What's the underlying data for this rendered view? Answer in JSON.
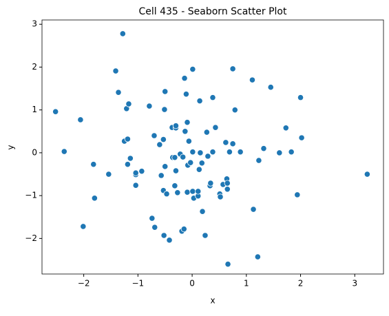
{
  "chart_data": {
    "type": "scatter",
    "title": "Cell 435 - Seaborn Scatter Plot",
    "x_label": "x",
    "y_label": "y",
    "color": "#1f77b4",
    "xlim": [
      -2.77,
      3.53
    ],
    "ylim": [
      -2.83,
      3.1
    ],
    "xticks": [
      {
        "value": -2,
        "label": "−2"
      },
      {
        "value": -1,
        "label": "−1"
      },
      0,
      1,
      2,
      3
    ],
    "yticks": [
      {
        "value": -2,
        "label": "−2"
      },
      {
        "value": -1,
        "label": "−1"
      },
      0,
      1,
      2,
      3
    ],
    "grid": false,
    "x": [
      -2.52,
      -2.36,
      -2.06,
      -2.01,
      -1.82,
      -1.8,
      -1.54,
      -1.41,
      -1.36,
      -1.28,
      -1.25,
      -1.19,
      -1.21,
      -1.17,
      -1.19,
      -1.14,
      -1.04,
      -1.04,
      -1.04,
      -0.93,
      -0.79,
      -0.74,
      -0.7,
      -0.69,
      -0.6,
      -0.57,
      -0.53,
      -0.53,
      -0.52,
      -0.51,
      -0.5,
      -0.5,
      -0.47,
      -0.42,
      -0.37,
      -0.36,
      -0.32,
      -0.3,
      -0.3,
      -0.32,
      -0.3,
      -0.27,
      -0.22,
      -0.19,
      -0.17,
      -0.15,
      -0.14,
      -0.13,
      -0.11,
      -0.09,
      -0.09,
      -0.08,
      -0.06,
      -0.03,
      0.01,
      0.01,
      0.01,
      0.03,
      0.11,
      0.11,
      0.13,
      0.14,
      0.15,
      0.18,
      0.19,
      0.24,
      0.27,
      0.29,
      0.33,
      0.34,
      0.38,
      0.38,
      0.43,
      0.51,
      0.52,
      0.57,
      0.62,
      0.64,
      0.65,
      0.65,
      0.66,
      0.69,
      0.75,
      0.75,
      0.79,
      0.89,
      1.11,
      1.13,
      1.21,
      1.23,
      1.32,
      1.45,
      1.61,
      1.73,
      1.83,
      1.94,
      2.0,
      2.02,
      3.23
    ],
    "values": [
      0.96,
      0.03,
      0.77,
      -1.72,
      -0.27,
      -1.06,
      -0.5,
      1.91,
      1.41,
      2.78,
      0.27,
      0.32,
      1.03,
      1.14,
      -0.27,
      -0.13,
      -0.51,
      -0.76,
      -0.47,
      -0.43,
      1.09,
      -1.53,
      0.4,
      -1.74,
      0.19,
      -0.53,
      0.31,
      -0.88,
      -1.93,
      1.01,
      1.43,
      -0.32,
      -0.96,
      -2.04,
      0.59,
      -0.11,
      -0.11,
      0.58,
      0.63,
      -0.77,
      -0.42,
      -0.93,
      -0.03,
      -1.83,
      -0.1,
      -1.78,
      1.74,
      0.5,
      1.37,
      0.71,
      -0.92,
      -0.29,
      0.27,
      -0.23,
      1.95,
      0.02,
      -0.9,
      -1.06,
      -1.01,
      -0.9,
      -0.39,
      1.21,
      0.0,
      -0.24,
      -1.37,
      -1.93,
      0.48,
      -0.08,
      -0.77,
      -0.71,
      1.29,
      0.02,
      0.59,
      -0.96,
      -1.03,
      -0.74,
      0.24,
      -0.61,
      -0.71,
      -0.85,
      -2.6,
      0.02,
      0.21,
      1.96,
      1.0,
      0.02,
      1.7,
      -1.32,
      -2.43,
      -0.18,
      0.1,
      1.53,
      0.0,
      0.58,
      0.02,
      -0.98,
      1.29,
      0.35,
      -0.5
    ]
  }
}
